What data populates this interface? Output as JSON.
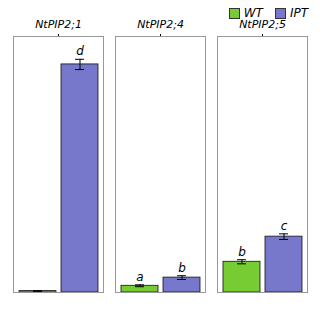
{
  "chart_data": {
    "type": "bar",
    "categories": [
      "NtPIP2;1",
      "NtPIP2;4",
      "NtPIP2;5"
    ],
    "series": [
      {
        "name": "WT",
        "color": "#77cc33",
        "values": [
          0.015,
          0.072,
          0.33
        ],
        "errors": [
          0.003,
          0.01,
          0.022
        ],
        "labels": [
          null,
          "a",
          "b"
        ]
      },
      {
        "name": "IPT",
        "color": "#7777cc",
        "values": [
          2.45,
          0.16,
          0.6
        ],
        "errors": [
          0.055,
          0.02,
          0.03
        ],
        "labels": [
          "d",
          "b",
          "c"
        ]
      }
    ],
    "ylim": [
      0,
      2.75
    ],
    "tick_labels": "x",
    "legend": "upper right",
    "grid": false
  }
}
